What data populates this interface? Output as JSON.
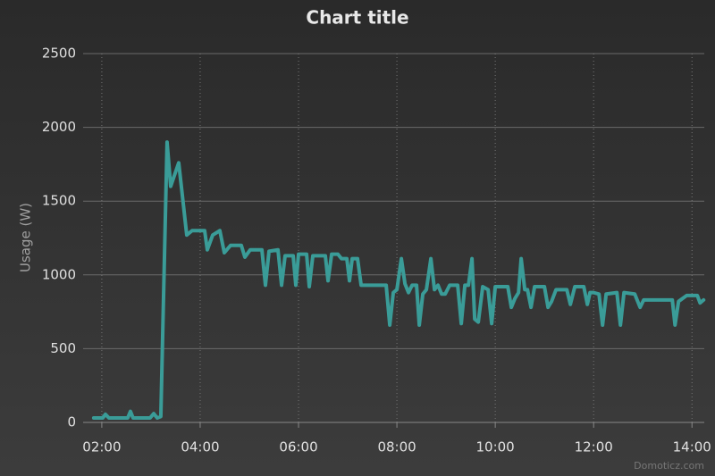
{
  "chart_data": {
    "type": "line",
    "title": "Chart title",
    "y_label": "Usage (W)",
    "credit": "Domoticz.com",
    "xlim": [
      1.62,
      14.25
    ],
    "xticks": [
      {
        "value": 2,
        "label": "02:00"
      },
      {
        "value": 4,
        "label": "04:00"
      },
      {
        "value": 6,
        "label": "06:00"
      },
      {
        "value": 8,
        "label": "08:00"
      },
      {
        "value": 10,
        "label": "10:00"
      },
      {
        "value": 12,
        "label": "12:00"
      },
      {
        "value": 14,
        "label": "14:00"
      }
    ],
    "ylim": [
      0,
      2500
    ],
    "yticks": [
      0,
      500,
      1000,
      1500,
      2000,
      2500
    ],
    "grid": true,
    "x": [
      1.836,
      2.018,
      2.073,
      2.145,
      2.527,
      2.582,
      2.636,
      2.982,
      3.055,
      3.127,
      3.2,
      3.327,
      3.4,
      3.564,
      3.727,
      3.836,
      4.091,
      4.145,
      4.255,
      4.4,
      4.491,
      4.618,
      4.836,
      4.909,
      5.018,
      5.255,
      5.327,
      5.4,
      5.582,
      5.655,
      5.727,
      5.891,
      5.945,
      6,
      6.164,
      6.218,
      6.291,
      6.545,
      6.6,
      6.673,
      6.8,
      6.873,
      6.982,
      7.036,
      7.091,
      7.2,
      7.273,
      7.782,
      7.855,
      7.927,
      8,
      8.091,
      8.164,
      8.236,
      8.309,
      8.4,
      8.455,
      8.527,
      8.6,
      8.691,
      8.764,
      8.836,
      8.909,
      8.982,
      9.073,
      9.236,
      9.309,
      9.382,
      9.455,
      9.527,
      9.582,
      9.655,
      9.745,
      9.855,
      9.927,
      10,
      10.255,
      10.327,
      10.4,
      10.473,
      10.527,
      10.6,
      10.655,
      10.727,
      10.8,
      11,
      11.073,
      11.145,
      11.236,
      11.455,
      11.527,
      11.618,
      11.8,
      11.873,
      11.927,
      12,
      12.109,
      12.182,
      12.255,
      12.473,
      12.545,
      12.618,
      12.836,
      12.945,
      13.018,
      13.6,
      13.655,
      13.727,
      13.891,
      14.109,
      14.164,
      14.236
    ],
    "series": [
      {
        "name": "Usage",
        "color": "#3a9c98",
        "values": [
          30,
          30,
          55,
          30,
          30,
          75,
          30,
          30,
          60,
          30,
          40,
          1900,
          1600,
          1760,
          1270,
          1300,
          1300,
          1170,
          1270,
          1300,
          1150,
          1200,
          1200,
          1120,
          1170,
          1170,
          930,
          1160,
          1170,
          930,
          1130,
          1130,
          930,
          1140,
          1140,
          920,
          1130,
          1130,
          960,
          1140,
          1140,
          1110,
          1110,
          960,
          1110,
          1110,
          930,
          930,
          660,
          880,
          900,
          1110,
          940,
          880,
          930,
          930,
          660,
          870,
          900,
          1110,
          900,
          930,
          870,
          870,
          930,
          930,
          670,
          930,
          930,
          1110,
          700,
          680,
          920,
          900,
          670,
          920,
          920,
          780,
          840,
          880,
          1110,
          900,
          900,
          780,
          920,
          920,
          780,
          820,
          900,
          900,
          800,
          920,
          920,
          800,
          880,
          880,
          870,
          660,
          870,
          880,
          660,
          880,
          870,
          780,
          830,
          830,
          660,
          820,
          860,
          860,
          810,
          830
        ]
      }
    ]
  }
}
